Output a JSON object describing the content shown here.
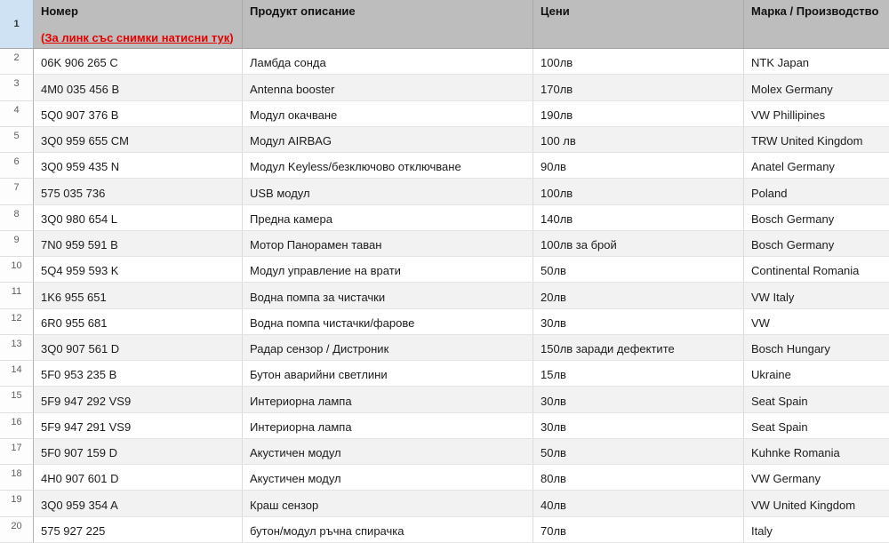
{
  "sheet": {
    "columns": [
      "Номер",
      "Продукт описание",
      "Цени",
      "Марка / Производство"
    ],
    "link": {
      "prefix": "(",
      "text": "За линк със снимки натисни тук",
      "suffix": ")"
    },
    "header_row_number": "1",
    "rows": [
      {
        "num": "2",
        "code": "06K 906 265 C",
        "product": "Ламбда сонда",
        "price": "100лв",
        "brand": "NTK Japan"
      },
      {
        "num": "3",
        "code": "4M0 035 456 B",
        "product": "Antenna booster",
        "price": "170лв",
        "brand": "Molex Germany"
      },
      {
        "num": "4",
        "code": "5Q0 907 376 B",
        "product": "Модул окачване",
        "price": "190лв",
        "brand": "VW Phillipines"
      },
      {
        "num": "5",
        "code": "3Q0 959 655 CM",
        "product": "Модул AIRBAG",
        "price": "100 лв",
        "brand": "TRW United Kingdom"
      },
      {
        "num": "6",
        "code": "3Q0 959 435 N",
        "product": "Модул Keyless/безключово отключване",
        "price": "90лв",
        "brand": "Anatel Germany"
      },
      {
        "num": "7",
        "code": "575 035 736",
        "product": "USB модул",
        "price": "100лв",
        "brand": "Poland"
      },
      {
        "num": "8",
        "code": "3Q0 980 654 L",
        "product": "Предна камера",
        "price": "140лв",
        "brand": "Bosch Germany"
      },
      {
        "num": "9",
        "code": "7N0 959 591 B",
        "product": "Мотор Панорамен таван",
        "price": "100лв за брой",
        "brand": "Bosch Germany"
      },
      {
        "num": "10",
        "code": "5Q4 959 593 K",
        "product": "Модул управление на врати",
        "price": "50лв",
        "brand": "Continental Romania"
      },
      {
        "num": "11",
        "code": "1K6 955 651",
        "product": "Водна помпа за чистачки",
        "price": "20лв",
        "brand": "VW Italy"
      },
      {
        "num": "12",
        "code": "6R0 955 681",
        "product": "Водна помпа чистачки/фарове",
        "price": "30лв",
        "brand": "VW"
      },
      {
        "num": "13",
        "code": "3Q0 907 561 D",
        "product": "Радар сензор / Дистроник",
        "price": "150лв заради дефектите",
        "brand": "Bosch Hungary"
      },
      {
        "num": "14",
        "code": "5F0 953 235 B",
        "product": "Бутон аварийни светлини",
        "price": "15лв",
        "brand": "Ukraine"
      },
      {
        "num": "15",
        "code": "5F9 947 292 VS9",
        "product": "Интериорна лампа",
        "price": "30лв",
        "brand": "Seat Spain"
      },
      {
        "num": "16",
        "code": "5F9 947 291 VS9",
        "product": "Интериорна лампа",
        "price": "30лв",
        "brand": "Seat Spain"
      },
      {
        "num": "17",
        "code": "5F0 907 159 D",
        "product": "Акустичен модул",
        "price": "50лв",
        "brand": "Kuhnke Romania"
      },
      {
        "num": "18",
        "code": "4H0 907 601 D",
        "product": "Акустичен модул",
        "price": "80лв",
        "brand": "VW Germany"
      },
      {
        "num": "19",
        "code": "3Q0 959 354 A",
        "product": "Краш сензор",
        "price": "40лв",
        "brand": "VW United Kingdom"
      },
      {
        "num": "20",
        "code": "575 927 225",
        "product": "бутон/модул ръчна спирачка",
        "price": "70лв",
        "brand": "Italy"
      }
    ]
  },
  "colors": {
    "header_bg": "#bdbdbd",
    "alt_row_bg": "#f2f2f2",
    "link_red": "#e60000",
    "row1_number_bg": "#cfe2f3",
    "gridline": "#e4e4e4"
  }
}
